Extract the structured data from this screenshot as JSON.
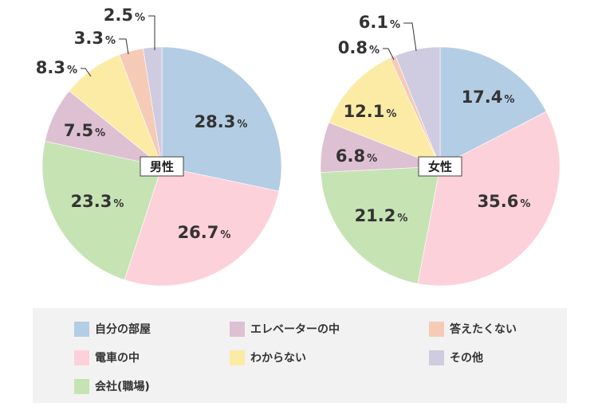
{
  "legend_title_male": "男性",
  "legend_title_female": "女性",
  "unit": "%",
  "categories": [
    "自分の部屋",
    "電車の中",
    "会社(職場)",
    "エレベーターの中",
    "わからない",
    "答えたくない",
    "その他"
  ],
  "colors": {
    "自分の部屋": "#b3cde4",
    "電車の中": "#fdd1da",
    "会社(職場)": "#c6e3b4",
    "エレベーターの中": "#dec0d3",
    "わからない": "#fbeba5",
    "答えたくない": "#f6cbb6",
    "その他": "#cfcbe0"
  },
  "chart_data": [
    {
      "type": "pie",
      "center_label": "男性",
      "categories": [
        "自分の部屋",
        "電車の中",
        "会社(職場)",
        "エレベーターの中",
        "わからない",
        "答えたくない",
        "その他"
      ],
      "values": [
        28.3,
        26.7,
        23.3,
        7.5,
        8.3,
        3.3,
        2.5
      ],
      "labels": [
        "28.3",
        "26.7",
        "23.3",
        "7.5",
        "8.3",
        "3.3",
        "2.5"
      ],
      "unit": "%"
    },
    {
      "type": "pie",
      "center_label": "女性",
      "categories": [
        "自分の部屋",
        "電車の中",
        "会社(職場)",
        "エレベーターの中",
        "わからない",
        "答えたくない",
        "その他"
      ],
      "values": [
        17.4,
        35.6,
        21.2,
        6.8,
        12.1,
        0.8,
        6.1
      ],
      "labels": [
        "17.4",
        "35.6",
        "21.2",
        "6.8",
        "12.1",
        "0.8",
        "6.1"
      ],
      "unit": "%"
    }
  ]
}
